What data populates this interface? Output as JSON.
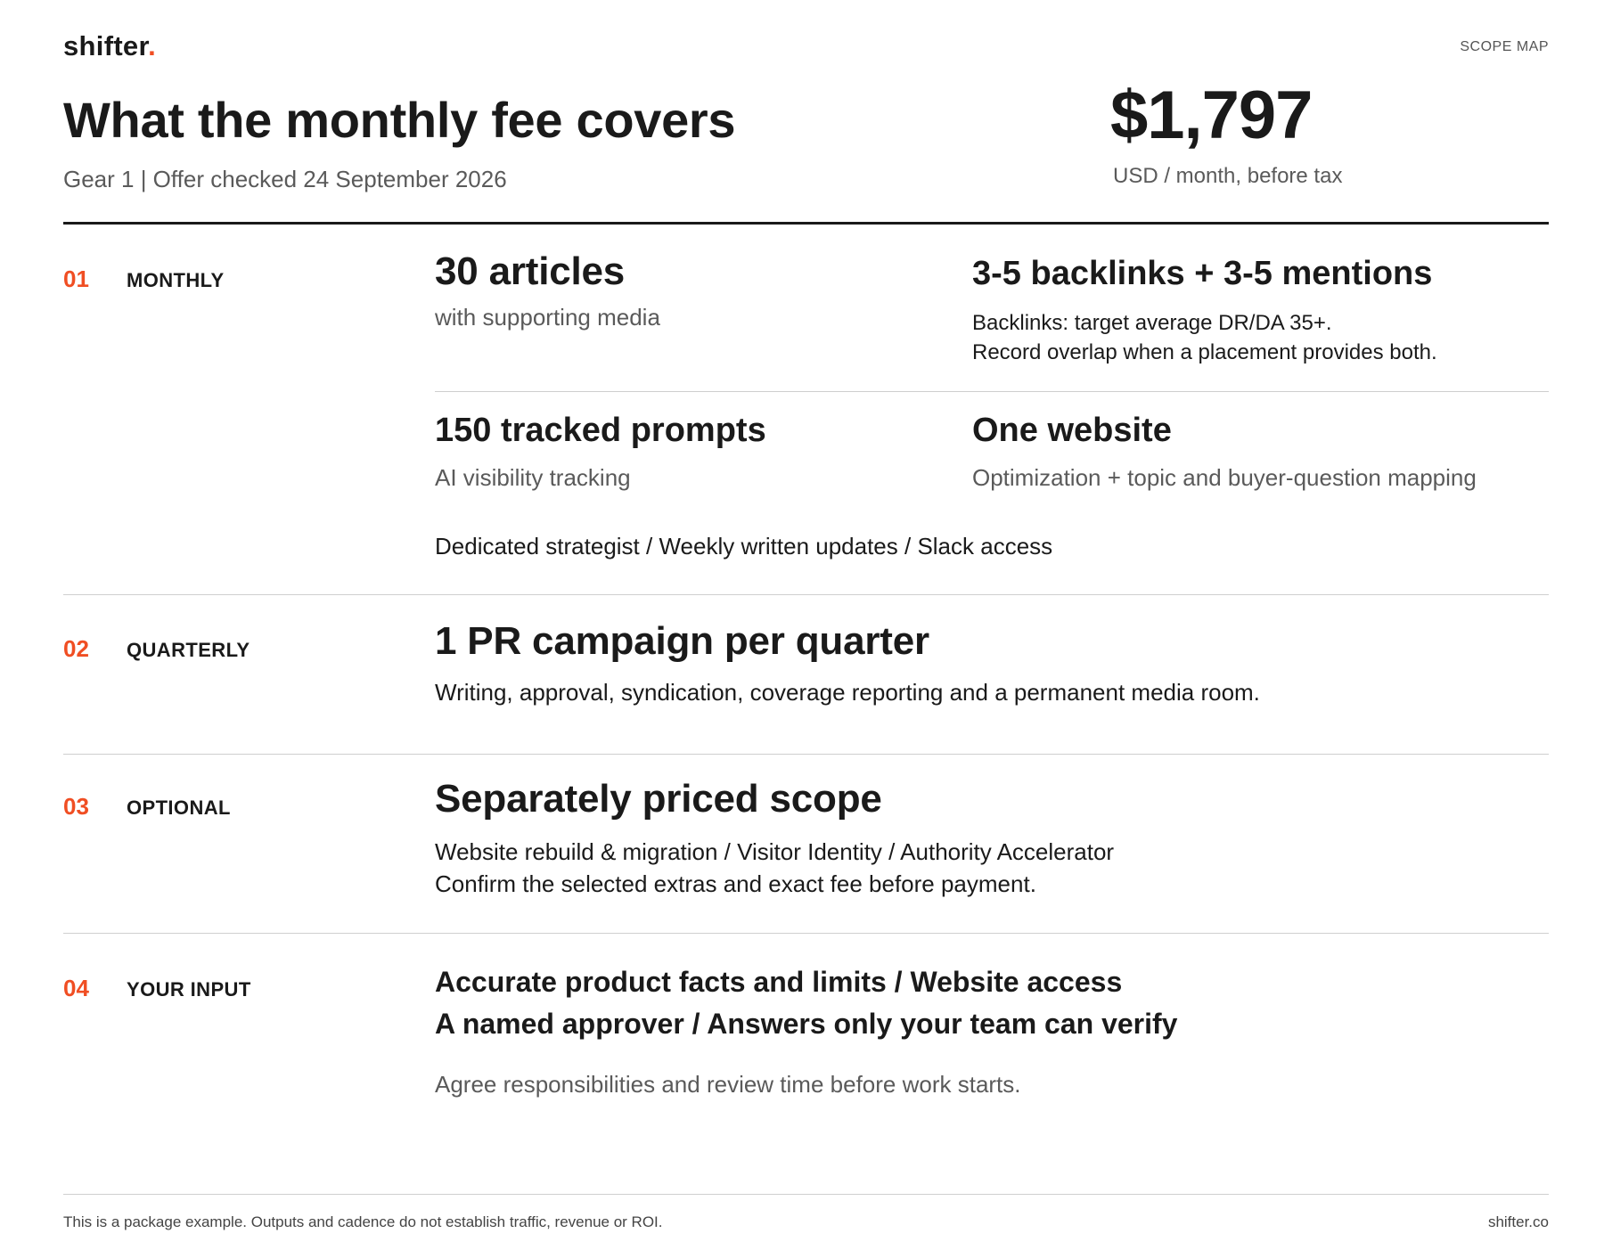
{
  "header": {
    "logo_text": "shifter",
    "logo_dot": ".",
    "scope_tag": "SCOPE MAP",
    "title": "What the monthly fee covers",
    "subtitle": "Gear 1 | Offer checked 24 September 2026",
    "price": "$1,797",
    "price_note": "USD / month, before tax"
  },
  "sections": [
    {
      "num": "01",
      "label": "MONTHLY",
      "articles": {
        "title": "30 articles",
        "sub": "with supporting media"
      },
      "backlinks": {
        "title": "3-5 backlinks + 3-5 mentions",
        "line1": "Backlinks: target average DR/DA 35+.",
        "line2": "Record overlap when a placement provides both."
      },
      "prompts": {
        "title": "150 tracked prompts",
        "sub": "AI visibility tracking"
      },
      "website": {
        "title": "One website",
        "sub": "Optimization + topic and buyer-question mapping"
      },
      "extras": "Dedicated strategist / Weekly written updates / Slack access"
    },
    {
      "num": "02",
      "label": "QUARTERLY",
      "title": "1 PR campaign per quarter",
      "line1": "Writing, approval, syndication, coverage reporting and a permanent media room."
    },
    {
      "num": "03",
      "label": "OPTIONAL",
      "title": "Separately priced scope",
      "line1": "Website rebuild & migration / Visitor Identity / Authority Accelerator",
      "line2": "Confirm the selected extras and exact fee before payment."
    },
    {
      "num": "04",
      "label": "YOUR INPUT",
      "line1": "Accurate product facts and limits / Website access",
      "line2": "A named approver / Answers only your team can verify",
      "note": "Agree responsibilities and review time before work starts."
    }
  ],
  "footer": {
    "note": "This is a package example. Outputs and cadence do not establish traffic, revenue or ROI.",
    "site": "shifter.co"
  },
  "colors": {
    "accent": "#f04e23",
    "text": "#1a1a1a",
    "muted": "#5a5a5a",
    "rule": "#cfcfcf"
  }
}
